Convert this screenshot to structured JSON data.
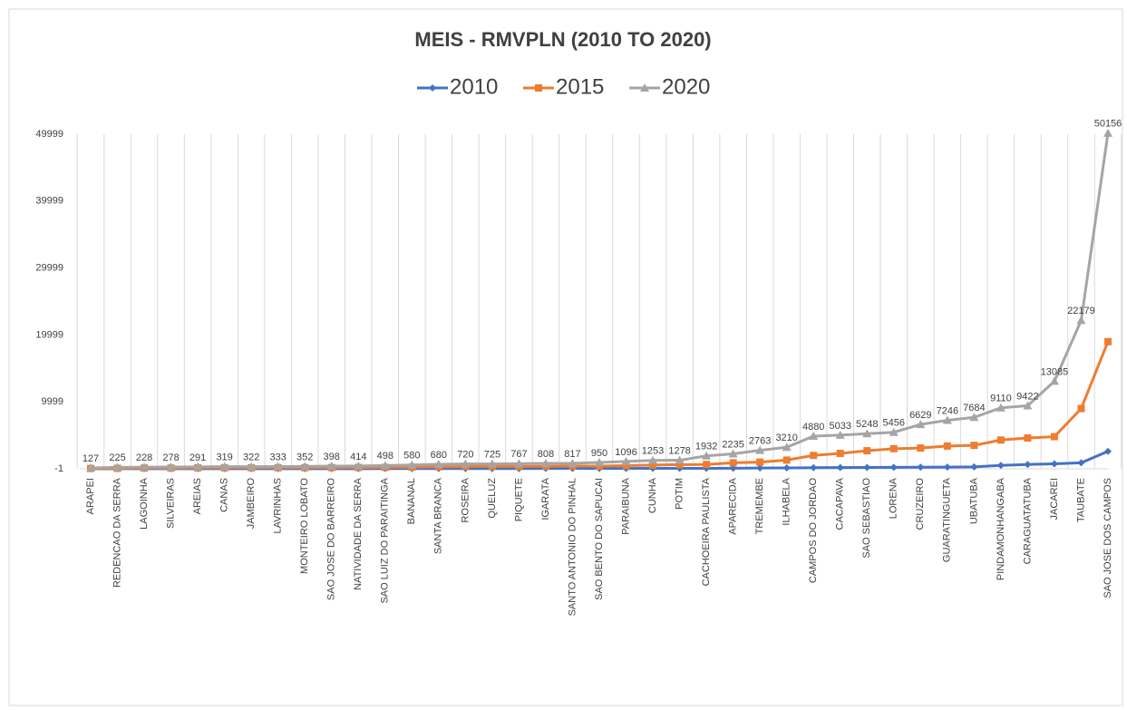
{
  "chart_data": {
    "type": "line",
    "title": "MEIS - RMVPLN (2010 TO 2020)",
    "categories": [
      "ARAPEI",
      "REDENCAO DA SERRA",
      "LAGOINHA",
      "SILVEIRAS",
      "AREIAS",
      "CANAS",
      "JAMBEIRO",
      "LAVRINHAS",
      "MONTEIRO LOBATO",
      "SAO JOSE DO BARREIRO",
      "NATIVIDADE DA SERRA",
      "SAO LUIZ DO PARAITINGA",
      "BANANAL",
      "SANTA BRANCA",
      "ROSEIRA",
      "QUELUZ",
      "PIQUETE",
      "IGARATA",
      "SANTO ANTONIO DO PINHAL",
      "SAO BENTO DO SAPUCAI",
      "PARAIBUNA",
      "CUNHA",
      "POTIM",
      "CACHOEIRA PAULISTA",
      "APARECIDA",
      "TREMEMBE",
      "ILHABELA",
      "CAMPOS DO JORDAO",
      "CACAPAVA",
      "SAO SEBASTIAO",
      "LORENA",
      "CRUZEIRO",
      "GUARATINGUETA",
      "UBATUBA",
      "PINDAMONHANGABA",
      "CARAGUATATUBA",
      "JACAREI",
      "TAUBATE",
      "SAO JOSE DOS CAMPOS"
    ],
    "series": [
      {
        "name": "2010",
        "color": "#4472c4",
        "marker": "diamond",
        "values": [
          5,
          8,
          12,
          12,
          15,
          15,
          18,
          18,
          20,
          20,
          22,
          25,
          28,
          30,
          35,
          38,
          40,
          42,
          45,
          48,
          55,
          60,
          65,
          70,
          90,
          110,
          130,
          160,
          180,
          200,
          220,
          240,
          260,
          290,
          500,
          650,
          750,
          900,
          2600
        ]
      },
      {
        "name": "2015",
        "color": "#ed7d31",
        "marker": "square",
        "values": [
          50,
          70,
          110,
          110,
          140,
          150,
          160,
          160,
          170,
          180,
          200,
          210,
          250,
          290,
          330,
          350,
          360,
          380,
          400,
          410,
          480,
          550,
          620,
          650,
          900,
          1000,
          1300,
          2000,
          2300,
          2700,
          3000,
          3100,
          3400,
          3500,
          4300,
          4600,
          4800,
          9000,
          19000
        ]
      },
      {
        "name": "2020",
        "color": "#a5a5a5",
        "marker": "triangle",
        "labels": true,
        "values": [
          127,
          225,
          228,
          278,
          291,
          319,
          322,
          333,
          352,
          398,
          414,
          498,
          580,
          680,
          720,
          725,
          767,
          808,
          817,
          950,
          1096,
          1253,
          1278,
          1932,
          2235,
          2763,
          3210,
          4880,
          5033,
          5248,
          5456,
          6629,
          7246,
          7684,
          9110,
          9422,
          13085,
          22179,
          50156
        ]
      }
    ],
    "ylim": [
      -1,
      49999
    ],
    "yticks": [
      -1,
      9999,
      19999,
      29999,
      39999,
      49999
    ],
    "grid": "vertical",
    "legend": "top"
  }
}
